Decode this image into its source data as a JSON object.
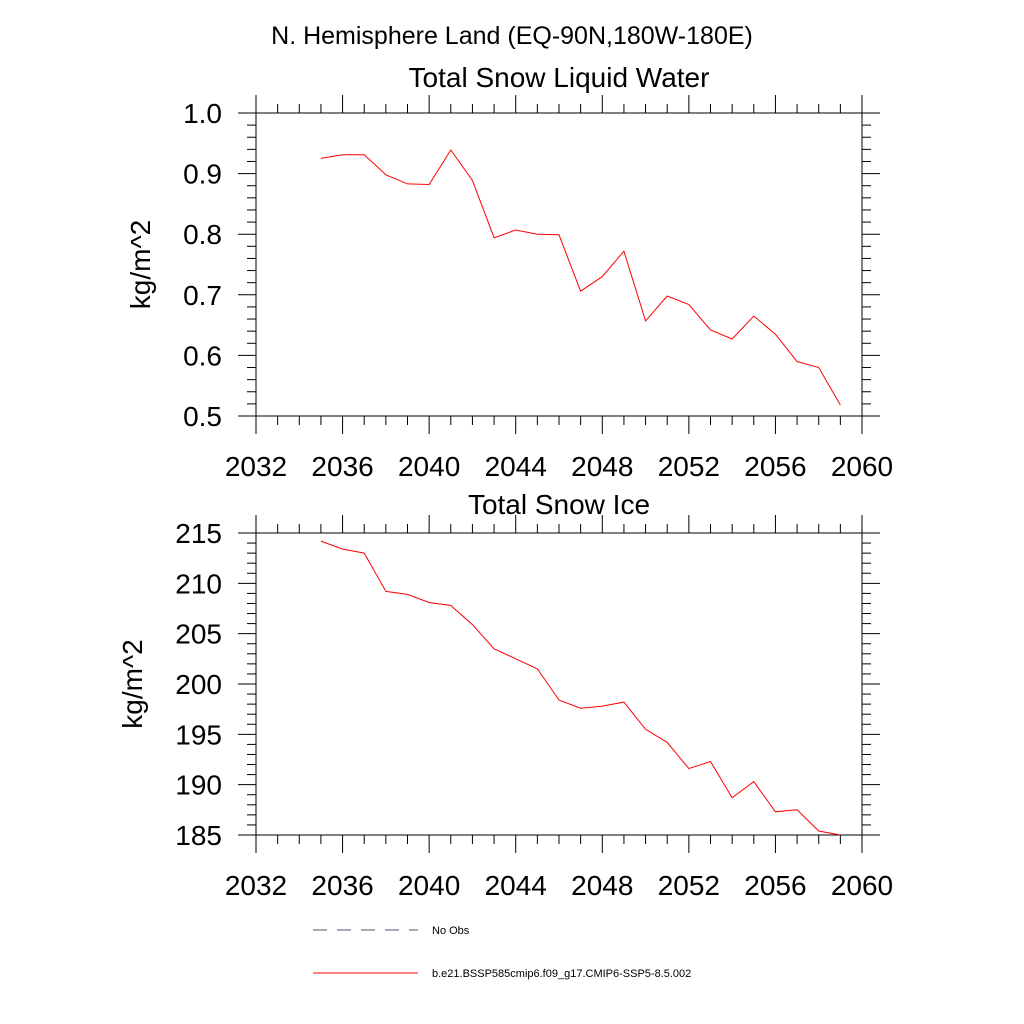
{
  "figure": {
    "main_title": "N. Hemisphere Land (EQ-90N,180W-180E)"
  },
  "chart_data": [
    {
      "type": "line",
      "title": "Total Snow Liquid Water",
      "xlabel": "",
      "ylabel": "kg/m^2",
      "xlim": [
        2032,
        2060
      ],
      "ylim": [
        0.5,
        1.0
      ],
      "x_ticks": [
        2032,
        2036,
        2040,
        2044,
        2048,
        2052,
        2056,
        2060
      ],
      "x_tick_labels": [
        "2032",
        "2036",
        "2040",
        "2044",
        "2048",
        "2052",
        "2056",
        "2060"
      ],
      "y_ticks": [
        0.5,
        0.6,
        0.7,
        0.8,
        0.9,
        1.0
      ],
      "y_tick_labels": [
        "0.5",
        "0.6",
        "0.7",
        "0.8",
        "0.9",
        "1.0"
      ],
      "grid": false,
      "series": [
        {
          "name": "b.e21.BSSP585cmip6.f09_g17.CMIP6-SSP5-8.5.002",
          "color": "#ff0000",
          "x": [
            2035,
            2036,
            2037,
            2038,
            2039,
            2040,
            2041,
            2042,
            2043,
            2044,
            2045,
            2046,
            2047,
            2048,
            2049,
            2050,
            2051,
            2052,
            2053,
            2054,
            2055,
            2056,
            2057,
            2058,
            2059
          ],
          "y": [
            0.925,
            0.931,
            0.931,
            0.898,
            0.883,
            0.882,
            0.939,
            0.889,
            0.794,
            0.807,
            0.8,
            0.799,
            0.706,
            0.73,
            0.772,
            0.657,
            0.698,
            0.684,
            0.642,
            0.627,
            0.665,
            0.635,
            0.59,
            0.58,
            0.518
          ]
        }
      ]
    },
    {
      "type": "line",
      "title": "Total Snow Ice",
      "xlabel": "",
      "ylabel": "kg/m^2",
      "xlim": [
        2032,
        2060
      ],
      "ylim": [
        185,
        215
      ],
      "x_ticks": [
        2032,
        2036,
        2040,
        2044,
        2048,
        2052,
        2056,
        2060
      ],
      "x_tick_labels": [
        "2032",
        "2036",
        "2040",
        "2044",
        "2048",
        "2052",
        "2056",
        "2060"
      ],
      "y_ticks": [
        185,
        190,
        195,
        200,
        205,
        210,
        215
      ],
      "y_tick_labels": [
        "185",
        "190",
        "195",
        "200",
        "205",
        "210",
        "215"
      ],
      "grid": false,
      "series": [
        {
          "name": "b.e21.BSSP585cmip6.f09_g17.CMIP6-SSP5-8.5.002",
          "color": "#ff0000",
          "x": [
            2035,
            2036,
            2037,
            2038,
            2039,
            2040,
            2041,
            2042,
            2043,
            2044,
            2045,
            2046,
            2047,
            2048,
            2049,
            2050,
            2051,
            2052,
            2053,
            2054,
            2055,
            2056,
            2057,
            2058,
            2059
          ],
          "y": [
            214.2,
            213.4,
            213.0,
            209.2,
            208.9,
            208.1,
            207.8,
            205.9,
            203.5,
            202.5,
            201.5,
            198.4,
            197.6,
            197.8,
            198.2,
            195.5,
            194.2,
            191.6,
            192.3,
            188.7,
            190.3,
            187.3,
            187.5,
            185.4,
            185.0
          ]
        }
      ]
    }
  ],
  "legend": {
    "placement": "bottom",
    "items": [
      {
        "label": "No Obs",
        "color": "#555577",
        "style": "dashed"
      },
      {
        "label": "b.e21.BSSP585cmip6.f09_g17.CMIP6-SSP5-8.5.002",
        "color": "#ff0000",
        "style": "solid"
      }
    ]
  }
}
